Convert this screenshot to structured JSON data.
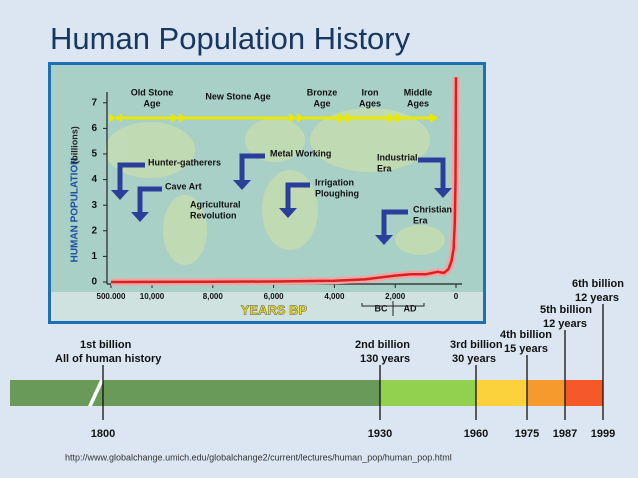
{
  "title": "Human Population History",
  "chart_data": {
    "type": "line",
    "y_label": "HUMAN POPULATION",
    "y_unit": "(billions)",
    "x_label": "YEARS BP",
    "x": [
      500000,
      10000,
      8000,
      6000,
      4000,
      3000,
      2000,
      1500,
      1000,
      600,
      400,
      250,
      150,
      80,
      40,
      15,
      0
    ],
    "values": [
      0,
      0.005,
      0.01,
      0.02,
      0.05,
      0.1,
      0.25,
      0.3,
      0.3,
      0.4,
      0.35,
      0.5,
      0.8,
      1.3,
      2.3,
      4.0,
      8.0
    ],
    "color": "#d92020",
    "xlim": [
      500000,
      0
    ],
    "ylim": [
      0,
      8.1
    ],
    "xticks": [
      {
        "value": 500000,
        "label": "500.000"
      },
      {
        "value": 10000,
        "label": "10,000"
      },
      {
        "value": 8000,
        "label": "8,000"
      },
      {
        "value": 6000,
        "label": "6,000"
      },
      {
        "value": 4000,
        "label": "4,000"
      },
      {
        "value": 2000,
        "label": "2,000"
      },
      0
    ],
    "yticks": [
      0,
      1,
      2,
      3,
      4,
      5,
      6,
      7
    ],
    "periods": [
      {
        "lines": [
          "Old Stone",
          "Age"
        ]
      },
      {
        "lines": [
          "New Stone Age"
        ]
      },
      {
        "lines": [
          "Bronze",
          "Age"
        ]
      },
      {
        "lines": [
          "Iron",
          "Ages"
        ]
      },
      {
        "lines": [
          "Middle",
          "Ages"
        ]
      }
    ],
    "annotations": [
      {
        "lines": [
          "Hunter-gatherers"
        ]
      },
      {
        "lines": [
          "Cave Art"
        ]
      },
      {
        "lines": [
          "Agricultural",
          "Revolution"
        ]
      },
      {
        "lines": [
          "Metal Working"
        ]
      },
      {
        "lines": [
          "Irrigation",
          "Ploughing"
        ]
      },
      {
        "lines": [
          "Industrial",
          "Era"
        ]
      },
      {
        "lines": [
          "Christian",
          "Era"
        ]
      }
    ],
    "era_labels": [
      "BC",
      "AD"
    ]
  },
  "timeline": {
    "milestones": [
      {
        "lines": [
          "1st billion",
          "All of human history"
        ],
        "year": "1800"
      },
      {
        "lines": [
          "2nd billion",
          "130 years"
        ],
        "year": "1930"
      },
      {
        "lines": [
          "3rd billion",
          "30 years"
        ],
        "year": "1960"
      },
      {
        "lines": [
          "4th billion",
          "15 years"
        ],
        "year": "1975"
      },
      {
        "lines": [
          "5th billion",
          "12 years"
        ],
        "year": "1987"
      },
      {
        "lines": [
          "6th billion",
          "12 years"
        ],
        "year": "1999"
      }
    ]
  },
  "source": "http://www.globalchange.umich.edu/globalchange2/current/lectures/human_pop/human_pop.html"
}
